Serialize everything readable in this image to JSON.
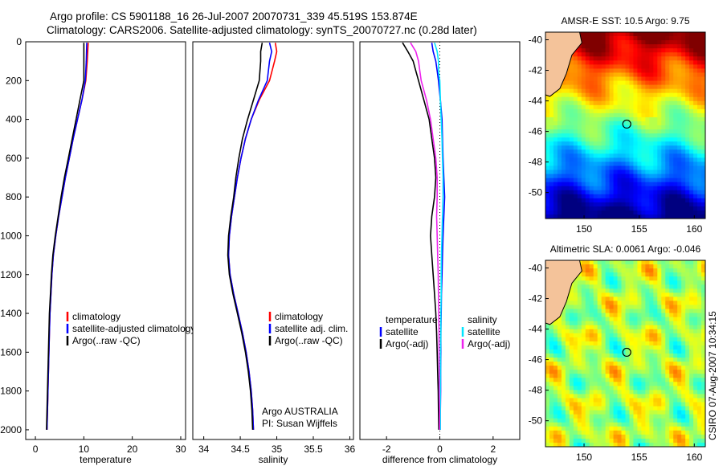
{
  "header": {
    "line1": "Argo profile: CS 5901188_16 26-Jul-2007 20070731_339 45.519S 153.874E",
    "line2": "Climatology: CARS2006. Satellite-adjusted climatology: synTS_20070727.nc (0.28d later)"
  },
  "side_label": "CSIRO 07-Aug-2007 10:34:15",
  "colors": {
    "clim": "#ff0000",
    "sat": "#0000ff",
    "argo": "#000000",
    "sat_diff": "#00e5ff",
    "argo_diff": "#ee22ee"
  },
  "chart_data": [
    {
      "type": "line",
      "name": "temperature-profile",
      "xlabel": "temperature",
      "xlim": [
        -2,
        31
      ],
      "ylim": [
        0,
        2050
      ],
      "xticks": [
        0,
        10,
        20,
        30
      ],
      "yticks": [
        0,
        200,
        400,
        600,
        800,
        1000,
        1200,
        1400,
        1600,
        1800,
        2000
      ],
      "depth": [
        5,
        100,
        200,
        300,
        400,
        500,
        600,
        700,
        800,
        900,
        1000,
        1100,
        1200,
        1300,
        1400,
        1500,
        1600,
        1700,
        1800,
        1900,
        2000
      ],
      "series": [
        {
          "name": "climatology",
          "color_key": "clim",
          "values": [
            10.9,
            10.7,
            10.4,
            9.6,
            8.7,
            7.8,
            7.0,
            6.2,
            5.5,
            4.8,
            4.2,
            3.7,
            3.4,
            3.2,
            3.0,
            2.9,
            2.8,
            2.7,
            2.6,
            2.5,
            2.4
          ]
        },
        {
          "name": "satellite-adjusted climatology",
          "color_key": "sat",
          "values": [
            10.6,
            10.5,
            10.3,
            9.6,
            8.7,
            7.8,
            7.0,
            6.2,
            5.5,
            4.8,
            4.2,
            3.7,
            3.4,
            3.2,
            3.0,
            2.9,
            2.8,
            2.7,
            2.6,
            2.5,
            2.4
          ]
        },
        {
          "name": "Argo(..raw -QC)",
          "color_key": "argo",
          "values": [
            10.0,
            10.0,
            10.0,
            9.2,
            8.4,
            7.6,
            6.8,
            6.0,
            5.3,
            4.7,
            4.1,
            3.6,
            3.3,
            3.1,
            2.9,
            2.8,
            2.7,
            2.6,
            2.5,
            2.4,
            2.3
          ]
        }
      ],
      "legend": [
        "climatology",
        "satellite-adjusted climatology",
        "Argo(..raw -QC)"
      ]
    },
    {
      "type": "line",
      "name": "salinity-profile",
      "xlabel": "salinity",
      "xlim": [
        33.85,
        36.05
      ],
      "ylim": [
        0,
        2050
      ],
      "xticks": [
        34,
        34.5,
        35,
        35.5,
        36
      ],
      "yticks": [],
      "depth": [
        5,
        50,
        100,
        200,
        300,
        400,
        500,
        600,
        700,
        800,
        900,
        1000,
        1100,
        1200,
        1300,
        1400,
        1500,
        1600,
        1700,
        1800,
        1900,
        2000
      ],
      "series": [
        {
          "name": "climatology",
          "color_key": "clim",
          "values": [
            34.98,
            35.0,
            34.97,
            34.9,
            34.76,
            34.65,
            34.57,
            34.51,
            34.46,
            34.42,
            34.38,
            34.35,
            34.34,
            34.36,
            34.41,
            34.47,
            34.53,
            34.58,
            34.62,
            34.65,
            34.67,
            34.68
          ]
        },
        {
          "name": "satellite adj. clim.",
          "color_key": "sat",
          "values": [
            34.9,
            34.93,
            34.9,
            34.87,
            34.75,
            34.65,
            34.57,
            34.51,
            34.46,
            34.42,
            34.38,
            34.35,
            34.34,
            34.36,
            34.41,
            34.47,
            34.53,
            34.58,
            34.62,
            34.65,
            34.67,
            34.68
          ]
        },
        {
          "name": "Argo(..raw -QC)",
          "color_key": "argo",
          "values": [
            34.8,
            34.78,
            34.78,
            34.76,
            34.68,
            34.6,
            34.53,
            34.48,
            34.44,
            34.41,
            34.37,
            34.34,
            34.33,
            34.35,
            34.4,
            34.46,
            34.52,
            34.57,
            34.61,
            34.64,
            34.66,
            34.67
          ]
        }
      ],
      "legend": [
        "climatology",
        "satellite adj. clim.",
        "Argo(..raw -QC)"
      ],
      "annotation": [
        "Argo AUSTRALIA",
        "PI: Susan Wijffels"
      ]
    },
    {
      "type": "line",
      "name": "difference-profile",
      "xlabel": "difference from climatology",
      "xlim": [
        -3,
        3
      ],
      "ylim": [
        0,
        2050
      ],
      "xticks": [
        -2,
        0,
        2
      ],
      "yticks": [],
      "depth": [
        5,
        50,
        100,
        150,
        200,
        300,
        400,
        500,
        600,
        700,
        800,
        900,
        1000,
        1100,
        1200,
        1300,
        1400,
        1500,
        1600,
        1700,
        1800,
        1900,
        2000
      ],
      "series": [
        {
          "name": "temperature satellite",
          "color_key": "sat",
          "values": [
            -0.3,
            -0.25,
            -0.15,
            -0.1,
            -0.05,
            0.02,
            0.08,
            0.1,
            0.12,
            0.15,
            0.18,
            0.15,
            0.12,
            0.1,
            0.08,
            0.06,
            0.05,
            0.04,
            0.04,
            0.03,
            0.03,
            0.02,
            0.02
          ]
        },
        {
          "name": "temperature Argo(-adj)",
          "color_key": "argo",
          "values": [
            -1.4,
            -1.2,
            -1.0,
            -0.9,
            -0.8,
            -0.6,
            -0.4,
            -0.3,
            -0.2,
            -0.15,
            -0.2,
            -0.3,
            -0.35,
            -0.3,
            -0.25,
            -0.2,
            -0.15,
            -0.12,
            -0.1,
            -0.08,
            -0.06,
            -0.05,
            -0.04
          ]
        },
        {
          "name": "salinity satellite",
          "color_key": "sat_diff",
          "values": [
            -0.2,
            -0.1,
            -0.05,
            -0.05,
            0.0,
            0.02,
            0.05,
            0.08,
            0.1,
            0.12,
            0.12,
            0.1,
            0.08,
            0.06,
            0.05,
            0.05,
            0.04,
            0.04,
            0.03,
            0.03,
            0.02,
            0.02,
            0.02
          ]
        },
        {
          "name": "salinity Argo(-adj)",
          "color_key": "argo_diff",
          "values": [
            -1.1,
            -0.9,
            -0.8,
            -0.75,
            -0.7,
            -0.5,
            -0.35,
            -0.25,
            -0.15,
            -0.1,
            -0.1,
            -0.12,
            -0.1,
            -0.08,
            -0.06,
            -0.05,
            -0.04,
            -0.03,
            -0.03,
            -0.02,
            -0.02,
            -0.01,
            -0.01
          ]
        }
      ],
      "legend_temperature": {
        "heading": "temperature",
        "items": [
          "satellite",
          "Argo(-adj)"
        ]
      },
      "legend_salinity": {
        "heading": "salinity",
        "items": [
          "satellite",
          "Argo(-adj)"
        ]
      }
    },
    {
      "type": "heatmap",
      "name": "sst-map",
      "title": "AMSR-E SST: 10.5 Argo: 9.75",
      "xlim": [
        146.5,
        161
      ],
      "ylim": [
        -51.7,
        -39.5
      ],
      "xticks": [
        150,
        155,
        160
      ],
      "yticks": [
        -40,
        -42,
        -44,
        -46,
        -48,
        -50
      ],
      "marker": {
        "lon": 153.874,
        "lat": -45.519
      }
    },
    {
      "type": "heatmap",
      "name": "sla-map",
      "title": "Altimetric SLA: 0.0061 Argo: -0.046",
      "xlim": [
        146.5,
        161
      ],
      "ylim": [
        -51.7,
        -39.5
      ],
      "xticks": [
        150,
        155,
        160
      ],
      "yticks": [
        -40,
        -42,
        -44,
        -46,
        -48,
        -50
      ],
      "marker": {
        "lon": 153.874,
        "lat": -45.519
      }
    }
  ]
}
